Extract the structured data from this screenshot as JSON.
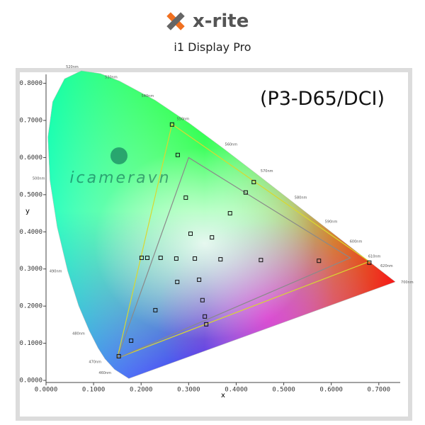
{
  "brand": "x-rite",
  "product": "i1 Display Pro",
  "chart_data": {
    "type": "scatter",
    "title": "(P3-D65/DCI)",
    "watermark": "icameravn",
    "x_label": "x",
    "y_label": "y",
    "xlim": [
      0,
      0.745
    ],
    "ylim": [
      0,
      0.824
    ],
    "xticks": [
      {
        "value": 0,
        "label": "0.0000"
      },
      {
        "value": 0.1,
        "label": "0.1000"
      },
      {
        "value": 0.2,
        "label": "0.2000"
      },
      {
        "value": 0.3,
        "label": "0.3000"
      },
      {
        "value": 0.4,
        "label": "0.4000"
      },
      {
        "value": 0.5,
        "label": "0.5000"
      },
      {
        "value": 0.6,
        "label": "0.6000"
      },
      {
        "value": 0.7,
        "label": "0.7000"
      }
    ],
    "yticks": [
      {
        "value": 0,
        "label": "0.0000"
      },
      {
        "value": 0.1,
        "label": "0.1000"
      },
      {
        "value": 0.2,
        "label": "0.2000"
      },
      {
        "value": 0.3,
        "label": "0.3000"
      },
      {
        "value": 0.4,
        "label": "0.4000"
      },
      {
        "value": 0.5,
        "label": "0.5000"
      },
      {
        "value": 0.6,
        "label": "0.6000"
      },
      {
        "value": 0.7,
        "label": "0.7000"
      },
      {
        "value": 0.8,
        "label": "0.8000"
      }
    ],
    "locus": {
      "x": [
        0.1741,
        0.144,
        0.1241,
        0.1096,
        0.0913,
        0.0687,
        0.0454,
        0.0235,
        0.0082,
        0.0039,
        0.0139,
        0.0389,
        0.0743,
        0.1142,
        0.1547,
        0.2296,
        0.3016,
        0.3731,
        0.4441,
        0.5125,
        0.5752,
        0.627,
        0.6658,
        0.6915,
        0.7347
      ],
      "y": [
        0.005,
        0.0297,
        0.0578,
        0.0868,
        0.1327,
        0.2007,
        0.295,
        0.4127,
        0.5384,
        0.6548,
        0.7502,
        0.812,
        0.8338,
        0.8262,
        0.8059,
        0.7543,
        0.6923,
        0.6245,
        0.5547,
        0.4866,
        0.4242,
        0.3725,
        0.334,
        0.3083,
        0.2653
      ]
    },
    "wavelength_labels": [
      {
        "label": "460nm",
        "x": 0.144,
        "y": 0.0297
      },
      {
        "label": "470nm",
        "x": 0.1241,
        "y": 0.0578
      },
      {
        "label": "480nm",
        "x": 0.0913,
        "y": 0.1327
      },
      {
        "label": "490nm",
        "x": 0.0454,
        "y": 0.295
      },
      {
        "label": "500nm",
        "x": 0.0082,
        "y": 0.5384
      },
      {
        "label": "520nm",
        "x": 0.0743,
        "y": 0.8338
      },
      {
        "label": "530nm",
        "x": 0.1547,
        "y": 0.8059
      },
      {
        "label": "540nm",
        "x": 0.2296,
        "y": 0.7543
      },
      {
        "label": "550nm",
        "x": 0.3016,
        "y": 0.6923
      },
      {
        "label": "560nm",
        "x": 0.3731,
        "y": 0.6245
      },
      {
        "label": "570nm",
        "x": 0.4441,
        "y": 0.5547
      },
      {
        "label": "580nm",
        "x": 0.5125,
        "y": 0.4866
      },
      {
        "label": "590nm",
        "x": 0.5752,
        "y": 0.4242
      },
      {
        "label": "600nm",
        "x": 0.627,
        "y": 0.3725
      },
      {
        "label": "610nm",
        "x": 0.6658,
        "y": 0.334
      },
      {
        "label": "620nm",
        "x": 0.6915,
        "y": 0.3083
      },
      {
        "label": "700nm",
        "x": 0.7347,
        "y": 0.2653
      }
    ],
    "gamuts": [
      {
        "color": "#d8d830",
        "x": [
          0.68,
          0.265,
          0.15
        ],
        "y": [
          0.32,
          0.69,
          0.06
        ]
      },
      {
        "color": "#8a8a8a",
        "x": [
          0.64,
          0.3,
          0.15
        ],
        "y": [
          0.33,
          0.6,
          0.06
        ]
      }
    ],
    "series": [
      {
        "color": "#111111",
        "x": [
          0.265,
          0.277,
          0.294,
          0.437,
          0.42,
          0.387,
          0.304,
          0.349,
          0.201,
          0.213,
          0.241,
          0.274,
          0.313,
          0.367,
          0.452,
          0.574,
          0.68,
          0.322,
          0.276,
          0.329,
          0.23,
          0.334,
          0.337,
          0.179,
          0.153
        ],
        "y": [
          0.689,
          0.607,
          0.492,
          0.534,
          0.506,
          0.45,
          0.395,
          0.385,
          0.33,
          0.33,
          0.33,
          0.328,
          0.328,
          0.326,
          0.324,
          0.322,
          0.317,
          0.271,
          0.265,
          0.216,
          0.189,
          0.172,
          0.151,
          0.107,
          0.065
        ]
      }
    ]
  }
}
